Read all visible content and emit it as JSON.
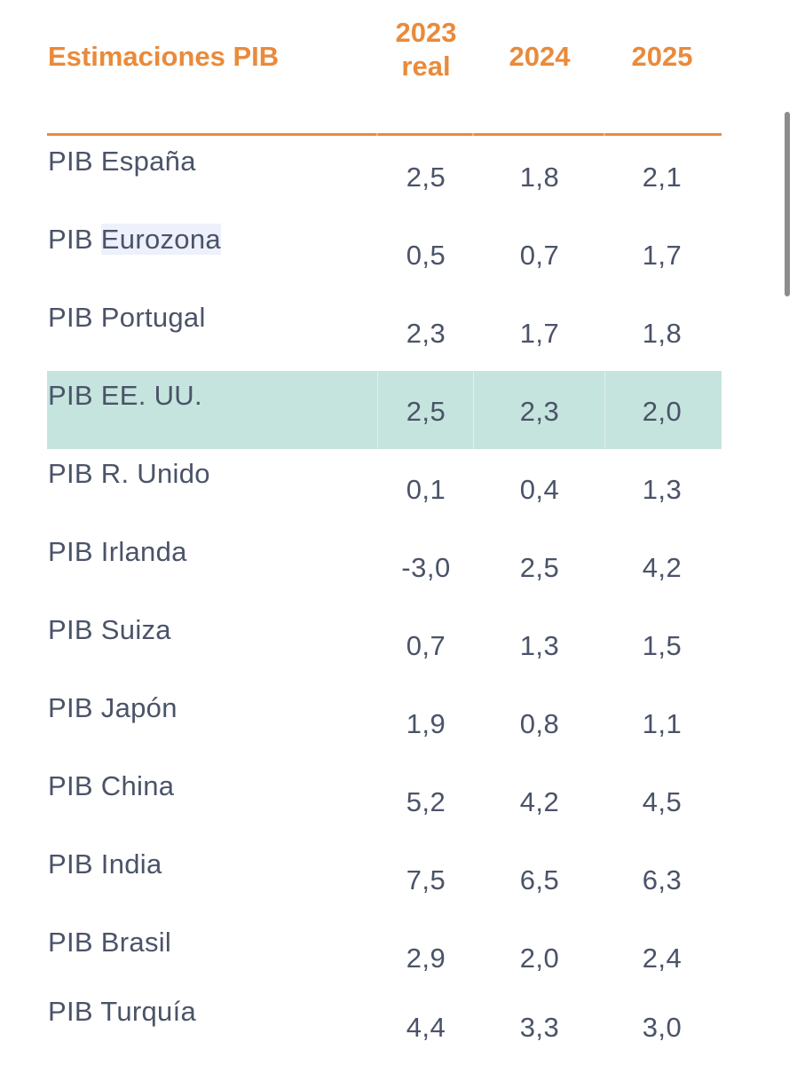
{
  "header": {
    "title": "Estimaciones PIB",
    "col1_year": "2023",
    "col1_sub": "real",
    "col2": "2024",
    "col3": "2025"
  },
  "colors": {
    "accent": "#ea8a3a",
    "text": "#4a5368",
    "highlight": "#c5e4de"
  },
  "rows": [
    {
      "prefix": "PIB",
      "name": "España",
      "v2023": "2,5",
      "v2024": "1,8",
      "v2025": "2,1"
    },
    {
      "prefix": "PIB",
      "name": "Eurozona",
      "v2023": "0,5",
      "v2024": "0,7",
      "v2025": "1,7"
    },
    {
      "prefix": "PIB",
      "name": "Portugal",
      "v2023": "2,3",
      "v2024": "1,7",
      "v2025": "1,8"
    },
    {
      "prefix": "PIB",
      "name": "EE. UU.",
      "v2023": "2,5",
      "v2024": "2,3",
      "v2025": "2,0"
    },
    {
      "prefix": "PIB",
      "name": "R. Unido",
      "v2023": "0,1",
      "v2024": "0,4",
      "v2025": "1,3"
    },
    {
      "prefix": "PIB",
      "name": "Irlanda",
      "v2023": "-3,0",
      "v2024": "2,5",
      "v2025": "4,2"
    },
    {
      "prefix": "PIB",
      "name": "Suiza",
      "v2023": "0,7",
      "v2024": "1,3",
      "v2025": "1,5"
    },
    {
      "prefix": "PIB",
      "name": "Japón",
      "v2023": "1,9",
      "v2024": "0,8",
      "v2025": "1,1"
    },
    {
      "prefix": "PIB",
      "name": "China",
      "v2023": "5,2",
      "v2024": "4,2",
      "v2025": "4,5"
    },
    {
      "prefix": "PIB",
      "name": "India",
      "v2023": "7,5",
      "v2024": "6,5",
      "v2025": "6,3"
    },
    {
      "prefix": "PIB",
      "name": "Brasil",
      "v2023": "2,9",
      "v2024": "2,0",
      "v2025": "2,4"
    },
    {
      "prefix": "PIB",
      "name": "Turquía",
      "v2023": "4,4",
      "v2024": "3,3",
      "v2025": "3,0"
    }
  ]
}
